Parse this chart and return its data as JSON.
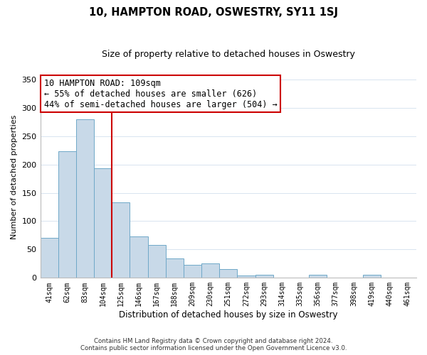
{
  "title": "10, HAMPTON ROAD, OSWESTRY, SY11 1SJ",
  "subtitle": "Size of property relative to detached houses in Oswestry",
  "xlabel": "Distribution of detached houses by size in Oswestry",
  "ylabel": "Number of detached properties",
  "categories": [
    "41sqm",
    "62sqm",
    "83sqm",
    "104sqm",
    "125sqm",
    "146sqm",
    "167sqm",
    "188sqm",
    "209sqm",
    "230sqm",
    "251sqm",
    "272sqm",
    "293sqm",
    "314sqm",
    "335sqm",
    "356sqm",
    "377sqm",
    "398sqm",
    "419sqm",
    "440sqm",
    "461sqm"
  ],
  "values": [
    70,
    223,
    280,
    193,
    133,
    73,
    58,
    34,
    23,
    25,
    15,
    4,
    6,
    0,
    0,
    6,
    0,
    0,
    6,
    0,
    1
  ],
  "bar_color": "#c8d9e8",
  "bar_edge_color": "#6fa8c8",
  "vline_x": 3.5,
  "vline_color": "#cc0000",
  "annotation_box_text": "10 HAMPTON ROAD: 109sqm\n← 55% of detached houses are smaller (626)\n44% of semi-detached houses are larger (504) →",
  "ylim": [
    0,
    355
  ],
  "yticks": [
    0,
    50,
    100,
    150,
    200,
    250,
    300,
    350
  ],
  "footer_line1": "Contains HM Land Registry data © Crown copyright and database right 2024.",
  "footer_line2": "Contains public sector information licensed under the Open Government Licence v3.0.",
  "background_color": "#ffffff",
  "grid_color": "#d8e4f0"
}
